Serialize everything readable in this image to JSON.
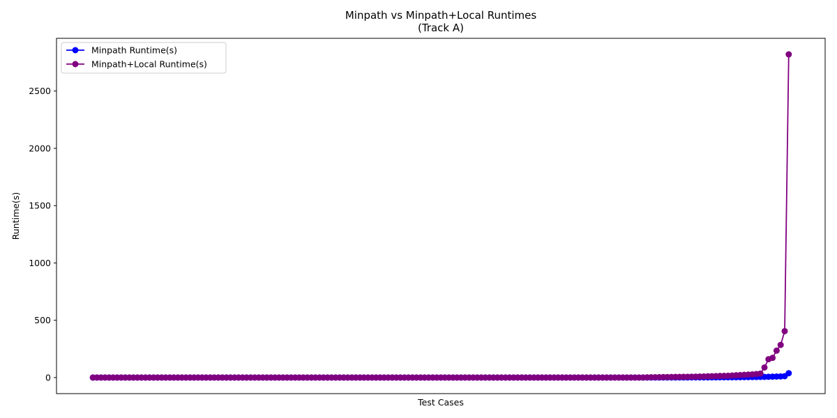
{
  "chart_data": {
    "type": "line",
    "title": "Minpath vs Minpath+Local Runtimes",
    "subtitle": "(Track A)",
    "xlabel": "Test Cases",
    "ylabel": "Runtime(s)",
    "xlim": [
      -9,
      181
    ],
    "ylim": [
      -140,
      2960
    ],
    "yticks": [
      0,
      500,
      1000,
      1500,
      2000,
      2500
    ],
    "x_ticks_shown": false,
    "grid": false,
    "legend_position": "top-left",
    "n_points": 173,
    "series": [
      {
        "name": "Minpath Runtime(s)",
        "color": "#0000ff",
        "marker": "circle",
        "head_value": 0.5,
        "tail_values": [
          0.5,
          0.6,
          0.7,
          0.8,
          0.9,
          1.0,
          1.1,
          1.2,
          1.3,
          1.4,
          1.5,
          1.6,
          1.7,
          1.8,
          2.0,
          2.2,
          2.4,
          2.6,
          2.8,
          3.0,
          3.3,
          3.6,
          4,
          4.5,
          5,
          5.5,
          6,
          7,
          8,
          9,
          10,
          12,
          38
        ]
      },
      {
        "name": "Minpath+Local Runtime(s)",
        "color": "#800080",
        "marker": "circle",
        "head_value": 0.5,
        "tail_values": [
          2,
          2.5,
          3,
          3.5,
          4,
          4.5,
          5,
          5.5,
          6,
          6.5,
          7,
          7.5,
          8,
          9,
          10,
          11,
          12,
          13,
          14,
          15,
          16,
          18,
          20,
          22,
          24,
          26,
          28,
          31,
          35,
          88,
          160,
          172,
          235,
          285,
          405,
          2820
        ]
      }
    ]
  }
}
